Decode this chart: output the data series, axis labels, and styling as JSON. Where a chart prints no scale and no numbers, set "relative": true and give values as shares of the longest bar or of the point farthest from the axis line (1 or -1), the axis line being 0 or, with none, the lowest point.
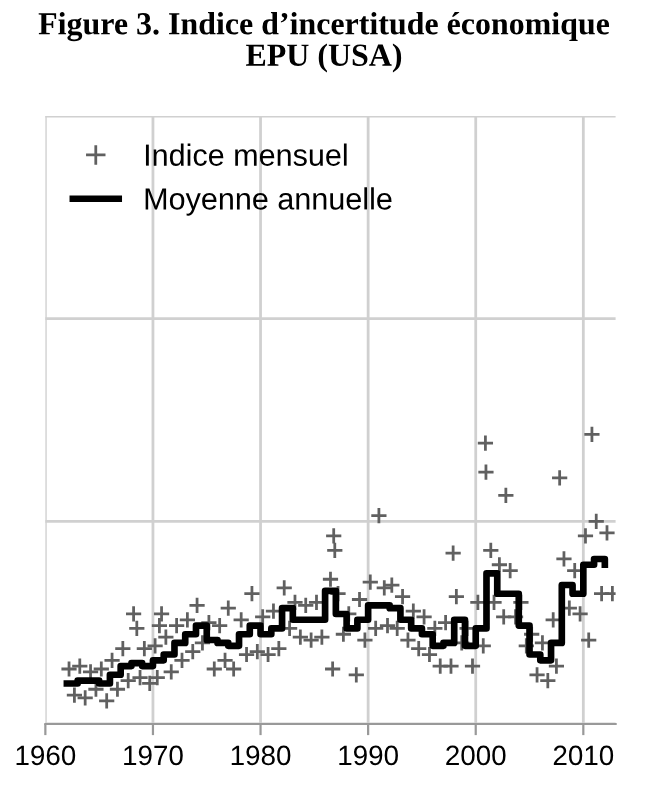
{
  "chart_data": {
    "type": "step",
    "title": "Figure 3. Indice d’incertitude économique\nEPU (USA)",
    "relative": true,
    "grid": true,
    "legend": "top left",
    "xlim": [
      1960,
      2013
    ],
    "xticks": [
      1960,
      1970,
      1980,
      1990,
      2000,
      2010
    ],
    "series": [
      {
        "name": "Indice mensuel",
        "type": "scatter",
        "marker": "cross",
        "color": "#606060",
        "x": [
          1962.2,
          1962.7,
          1963.2,
          1963.7,
          1964.2,
          1964.7,
          1965.2,
          1965.7,
          1966.2,
          1966.7,
          1967.2,
          1967.7,
          1968.2,
          1968.5,
          1968.8,
          1969.2,
          1969.7,
          1970.2,
          1970.8,
          1970.6,
          1970.4,
          1971.2,
          1971.7,
          1972.2,
          1972.7,
          1973.2,
          1973.7,
          1974.1,
          1974.6,
          1975.2,
          1975.7,
          1976.2,
          1976.7,
          1977.0,
          1977.5,
          1978.2,
          1978.7,
          1979.2,
          1979.7,
          1980.2,
          1980.7,
          1981.2,
          1981.7,
          1982.2,
          1982.7,
          1983.2,
          1983.7,
          1984.2,
          1984.7,
          1985.2,
          1985.7,
          1986.5,
          1986.8,
          1986.9,
          1986.7,
          1987.2,
          1987.7,
          1988.2,
          1988.9,
          1989.2,
          1989.7,
          1990.2,
          1990.7,
          1991.0,
          1991.5,
          1991.8,
          1992.2,
          1992.7,
          1993.2,
          1993.7,
          1994.2,
          1994.7,
          1995.2,
          1995.7,
          1996.2,
          1996.7,
          1997.2,
          1997.9,
          1997.7,
          1998.2,
          1998.7,
          1999.2,
          1999.7,
          2000.2,
          2000.7,
          2000.9,
          2000.95,
          2001.4,
          2001.7,
          2002.2,
          2002.8,
          2002.6,
          2003.2,
          2003.7,
          2004.2,
          2004.7,
          2005.2,
          2005.7,
          2006.2,
          2006.7,
          2007.2,
          2007.8,
          2007.5,
          2008.2,
          2008.7,
          2009.2,
          2009.7,
          2010.2,
          2010.8,
          2010.5,
          2011.2,
          2011.7,
          2012.2,
          2012.7
        ],
        "values": [
          0.19,
          0.1,
          0.2,
          0.09,
          0.18,
          0.12,
          0.19,
          0.08,
          0.22,
          0.12,
          0.26,
          0.15,
          0.38,
          0.33,
          0.16,
          0.26,
          0.14,
          0.27,
          0.38,
          0.34,
          0.16,
          0.3,
          0.18,
          0.34,
          0.22,
          0.36,
          0.25,
          0.41,
          0.28,
          0.35,
          0.19,
          0.34,
          0.22,
          0.4,
          0.19,
          0.36,
          0.24,
          0.45,
          0.25,
          0.37,
          0.24,
          0.39,
          0.26,
          0.47,
          0.33,
          0.42,
          0.3,
          0.41,
          0.29,
          0.42,
          0.3,
          0.5,
          0.65,
          0.6,
          0.19,
          0.45,
          0.31,
          0.38,
          0.17,
          0.43,
          0.29,
          0.49,
          0.33,
          0.72,
          0.47,
          0.34,
          0.48,
          0.33,
          0.44,
          0.29,
          0.39,
          0.26,
          0.37,
          0.24,
          0.33,
          0.2,
          0.35,
          0.59,
          0.2,
          0.44,
          0.28,
          0.33,
          0.2,
          0.42,
          0.27,
          0.97,
          0.87,
          0.6,
          0.42,
          0.55,
          0.79,
          0.37,
          0.53,
          0.37,
          0.42,
          0.27,
          0.31,
          0.17,
          0.28,
          0.15,
          0.36,
          0.85,
          0.2,
          0.57,
          0.4,
          0.53,
          0.38,
          0.65,
          1.0,
          0.29,
          0.7,
          0.45,
          0.66,
          0.45
        ]
      },
      {
        "name": "Moyenne annuelle",
        "color": "#000000",
        "x": [
          1962,
          1963,
          1964,
          1965,
          1966,
          1967,
          1968,
          1969,
          1970,
          1971,
          1972,
          1973,
          1974,
          1975,
          1976,
          1977,
          1978,
          1979,
          1980,
          1981,
          1982,
          1983,
          1984,
          1985,
          1986,
          1987,
          1988,
          1989,
          1990,
          1991,
          1992,
          1993,
          1994,
          1995,
          1996,
          1997,
          1998,
          1999,
          2000,
          2001,
          2002,
          2003,
          2004,
          2005,
          2006,
          2007,
          2008,
          2009,
          2010,
          2011,
          2012
        ],
        "values": [
          0.14,
          0.15,
          0.15,
          0.14,
          0.17,
          0.2,
          0.21,
          0.2,
          0.22,
          0.24,
          0.28,
          0.31,
          0.34,
          0.29,
          0.28,
          0.27,
          0.31,
          0.34,
          0.31,
          0.33,
          0.4,
          0.36,
          0.36,
          0.36,
          0.46,
          0.38,
          0.33,
          0.36,
          0.41,
          0.41,
          0.4,
          0.36,
          0.33,
          0.31,
          0.27,
          0.28,
          0.36,
          0.27,
          0.33,
          0.52,
          0.45,
          0.45,
          0.34,
          0.24,
          0.22,
          0.28,
          0.48,
          0.45,
          0.55,
          0.57,
          0.55
        ]
      }
    ]
  }
}
